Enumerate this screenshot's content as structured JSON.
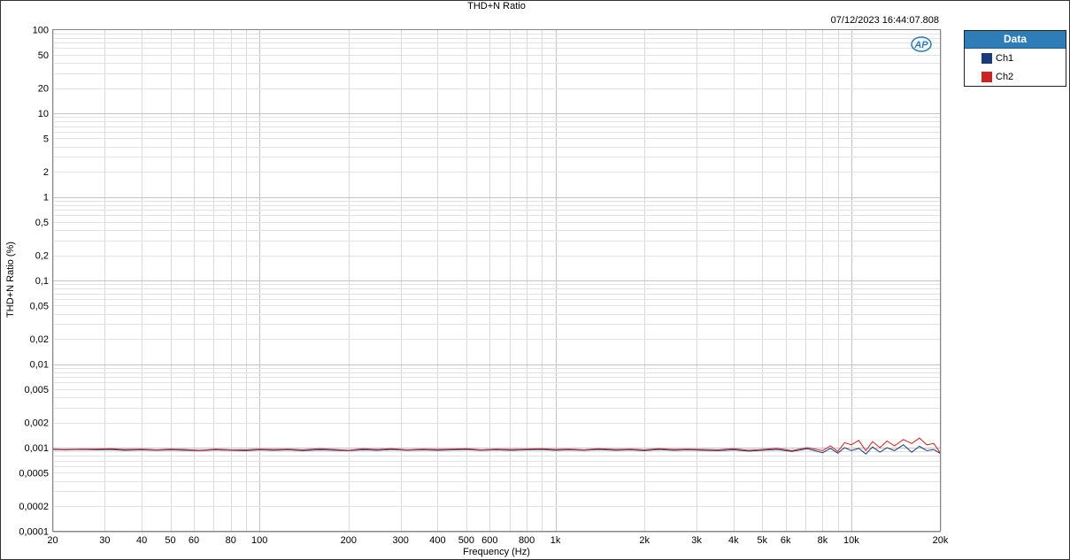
{
  "chart_data": {
    "type": "line",
    "title": "THD+N Ratio",
    "timestamp": "07/12/2023 16:44:07.808",
    "xlabel": "Frequency (Hz)",
    "ylabel": "THD+N Ratio (%)",
    "x_scale": "log",
    "y_scale": "log",
    "xlim": [
      20,
      20000
    ],
    "ylim": [
      0.0001,
      100
    ],
    "grid": true,
    "legend_placement": "right",
    "legend_title": "Data",
    "x_ticks": [
      {
        "v": 20,
        "l": "20"
      },
      {
        "v": 30,
        "l": "30"
      },
      {
        "v": 40,
        "l": "40"
      },
      {
        "v": 50,
        "l": "50"
      },
      {
        "v": 60,
        "l": "60"
      },
      {
        "v": 80,
        "l": "80"
      },
      {
        "v": 100,
        "l": "100"
      },
      {
        "v": 200,
        "l": "200"
      },
      {
        "v": 300,
        "l": "300"
      },
      {
        "v": 400,
        "l": "400"
      },
      {
        "v": 500,
        "l": "500"
      },
      {
        "v": 600,
        "l": "600"
      },
      {
        "v": 800,
        "l": "800"
      },
      {
        "v": 1000,
        "l": "1k"
      },
      {
        "v": 2000,
        "l": "2k"
      },
      {
        "v": 3000,
        "l": "3k"
      },
      {
        "v": 4000,
        "l": "4k"
      },
      {
        "v": 5000,
        "l": "5k"
      },
      {
        "v": 6000,
        "l": "6k"
      },
      {
        "v": 8000,
        "l": "8k"
      },
      {
        "v": 10000,
        "l": "10k"
      },
      {
        "v": 20000,
        "l": "20k"
      }
    ],
    "y_ticks": [
      {
        "v": 100,
        "l": "100"
      },
      {
        "v": 50,
        "l": "50"
      },
      {
        "v": 20,
        "l": "20"
      },
      {
        "v": 10,
        "l": "10"
      },
      {
        "v": 5,
        "l": "5"
      },
      {
        "v": 2,
        "l": "2"
      },
      {
        "v": 1,
        "l": "1"
      },
      {
        "v": 0.5,
        "l": "0,5"
      },
      {
        "v": 0.2,
        "l": "0,2"
      },
      {
        "v": 0.1,
        "l": "0,1"
      },
      {
        "v": 0.05,
        "l": "0,05"
      },
      {
        "v": 0.02,
        "l": "0,02"
      },
      {
        "v": 0.01,
        "l": "0,01"
      },
      {
        "v": 0.005,
        "l": "0,005"
      },
      {
        "v": 0.002,
        "l": "0,002"
      },
      {
        "v": 0.001,
        "l": "0,001"
      },
      {
        "v": 0.0005,
        "l": "0,0005"
      },
      {
        "v": 0.0002,
        "l": "0,0002"
      },
      {
        "v": 0.0001,
        "l": "0,0001"
      }
    ],
    "x": [
      20,
      22,
      25,
      28,
      31.5,
      35,
      40,
      45,
      50,
      56,
      63,
      71,
      80,
      90,
      100,
      112,
      125,
      140,
      160,
      180,
      200,
      224,
      250,
      280,
      315,
      355,
      400,
      450,
      500,
      560,
      630,
      710,
      800,
      900,
      1000,
      1120,
      1250,
      1400,
      1600,
      1800,
      2000,
      2240,
      2500,
      2800,
      3150,
      3550,
      4000,
      4500,
      5000,
      5600,
      6300,
      7100,
      8000,
      8500,
      9000,
      9500,
      10000,
      10600,
      11200,
      11800,
      12500,
      13200,
      14000,
      15000,
      16000,
      17000,
      18000,
      19000,
      20000
    ],
    "series": [
      {
        "name": "Ch1",
        "color": "#1a3a7a",
        "values": [
          0.00095,
          0.00094,
          0.00095,
          0.00094,
          0.00095,
          0.00093,
          0.00094,
          0.00093,
          0.00094,
          0.00093,
          0.00092,
          0.00094,
          0.00093,
          0.00092,
          0.00094,
          0.00093,
          0.00094,
          0.00092,
          0.00094,
          0.00093,
          0.00092,
          0.00094,
          0.00093,
          0.00095,
          0.00093,
          0.00094,
          0.00093,
          0.00094,
          0.00095,
          0.00093,
          0.00094,
          0.00093,
          0.00094,
          0.00095,
          0.00093,
          0.00094,
          0.00093,
          0.00095,
          0.00093,
          0.00094,
          0.00092,
          0.00095,
          0.00093,
          0.00094,
          0.00093,
          0.00092,
          0.00094,
          0.00091,
          0.00093,
          0.00095,
          0.0009,
          0.00097,
          0.00087,
          0.00098,
          0.00086,
          0.001,
          0.00092,
          0.00098,
          0.00084,
          0.00102,
          0.00088,
          0.001,
          0.00092,
          0.00108,
          0.00088,
          0.00104,
          0.00092,
          0.00095,
          0.00085
        ]
      },
      {
        "name": "Ch2",
        "color": "#cc2222",
        "values": [
          0.00096,
          0.00095,
          0.00096,
          0.00096,
          0.00097,
          0.00095,
          0.00096,
          0.00094,
          0.00096,
          0.00095,
          0.00093,
          0.00096,
          0.00094,
          0.00094,
          0.00096,
          0.00095,
          0.00096,
          0.00094,
          0.00097,
          0.00095,
          0.00093,
          0.00097,
          0.00095,
          0.00097,
          0.00094,
          0.00096,
          0.00095,
          0.00096,
          0.00097,
          0.00094,
          0.00096,
          0.00095,
          0.00096,
          0.00097,
          0.00095,
          0.00096,
          0.00094,
          0.00097,
          0.00095,
          0.00096,
          0.00094,
          0.00097,
          0.00095,
          0.00096,
          0.00095,
          0.00094,
          0.00097,
          0.00093,
          0.00095,
          0.00098,
          0.00092,
          0.001,
          0.00092,
          0.00105,
          0.0009,
          0.00115,
          0.00108,
          0.00122,
          0.00092,
          0.00118,
          0.001,
          0.0012,
          0.00105,
          0.00125,
          0.00112,
          0.0013,
          0.00108,
          0.00112,
          0.00086
        ]
      }
    ]
  }
}
